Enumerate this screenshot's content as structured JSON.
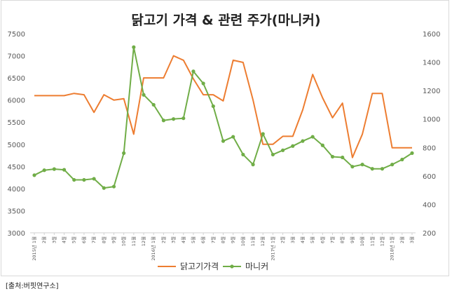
{
  "chart_data": {
    "type": "line",
    "title": "닭고기 가격 & 관련 주가(마니커)",
    "x": [
      "2015년 1월",
      "2월",
      "3월",
      "4월",
      "5월",
      "6월",
      "7월",
      "8월",
      "9월",
      "10월",
      "11월",
      "12월",
      "2016년 1월",
      "2월",
      "3월",
      "4월",
      "5월",
      "6월",
      "7월",
      "8월",
      "9월",
      "10월",
      "11월",
      "12월",
      "2017년 1월",
      "2월",
      "3월",
      "4월",
      "5월",
      "6월",
      "7월",
      "8월",
      "9월",
      "10월",
      "11월",
      "12월",
      "2018년 1월",
      "2월",
      "3월"
    ],
    "y_left_ticks": [
      "7500",
      "7000",
      "6500",
      "6000",
      "5500",
      "5000",
      "4500",
      "4000",
      "3500",
      "3000"
    ],
    "y_right_ticks": [
      "1600",
      "1400",
      "1200",
      "1000",
      "800",
      "600",
      "400",
      "200"
    ],
    "ylim_left": [
      3000,
      7500
    ],
    "ylim_right": [
      200,
      1600
    ],
    "series": [
      {
        "name": "닭고기가격",
        "axis": "left",
        "color": "#ED7D31",
        "values": [
          6100,
          6100,
          6100,
          6100,
          6150,
          6120,
          5720,
          6120,
          6000,
          6030,
          5230,
          6500,
          6500,
          6500,
          7000,
          6900,
          6480,
          6120,
          6120,
          5980,
          6900,
          6850,
          6000,
          5000,
          5000,
          5180,
          5180,
          5780,
          6580,
          6050,
          5600,
          5930,
          4700,
          5230,
          6150,
          6150,
          4920,
          4920,
          4920
        ]
      },
      {
        "name": "마니커",
        "axis": "right",
        "color": "#70AD47",
        "values": [
          605,
          640,
          648,
          643,
          572,
          572,
          580,
          515,
          525,
          760,
          1505,
          1170,
          1100,
          990,
          1000,
          1005,
          1335,
          1250,
          1090,
          845,
          875,
          750,
          680,
          895,
          750,
          780,
          810,
          845,
          875,
          815,
          735,
          730,
          665,
          680,
          650,
          650,
          680,
          715,
          760
        ]
      }
    ],
    "grid": false,
    "legend": "bottom"
  },
  "source": "[출처:버핏연구소]"
}
